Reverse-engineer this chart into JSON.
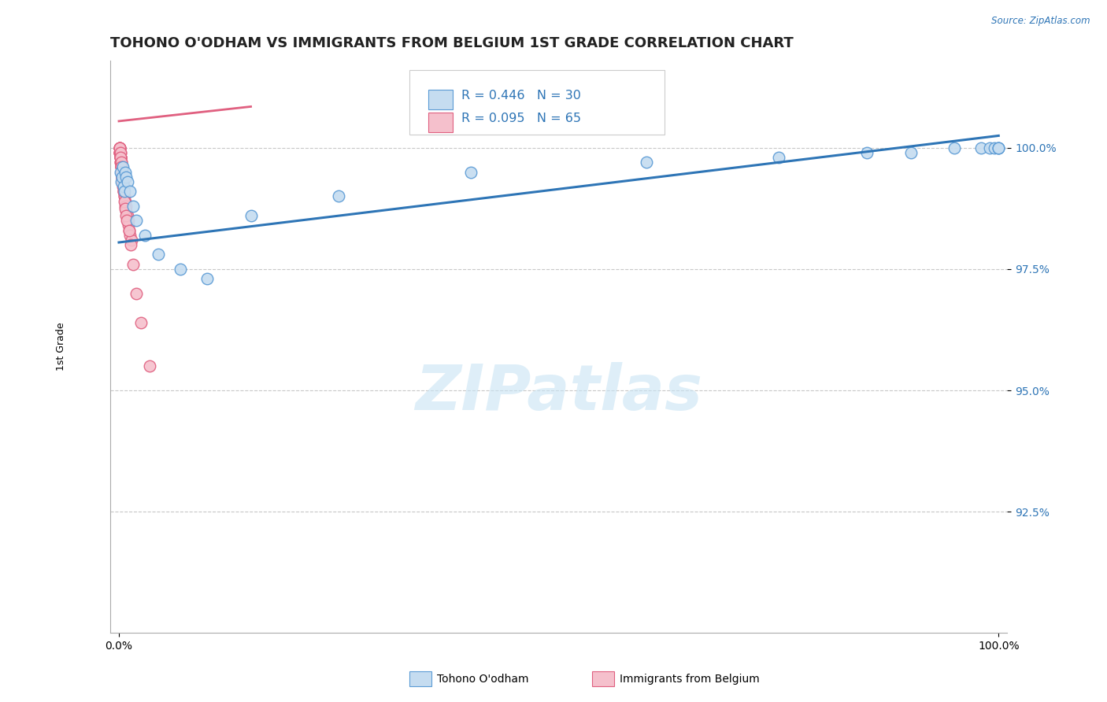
{
  "title": "TOHONO O'ODHAM VS IMMIGRANTS FROM BELGIUM 1ST GRADE CORRELATION CHART",
  "source_text": "Source: ZipAtlas.com",
  "ylabel": "1st Grade",
  "ylim": [
    90.0,
    101.8
  ],
  "yticks": [
    92.5,
    95.0,
    97.5,
    100.0
  ],
  "yticklabels": [
    "92.5%",
    "95.0%",
    "97.5%",
    "100.0%"
  ],
  "xticks": [
    0,
    100
  ],
  "xticklabels": [
    "0.0%",
    "100.0%"
  ],
  "grid_color": "#c8c8c8",
  "background_color": "#ffffff",
  "watermark": "ZIPatlas",
  "blue_series": {
    "label": "Tohono O'odham",
    "color": "#c5dcf0",
    "edge_color": "#5b9bd5",
    "R": 0.446,
    "N": 30,
    "x": [
      0.15,
      0.25,
      0.35,
      0.45,
      0.55,
      0.65,
      0.75,
      0.85,
      1.0,
      1.3,
      1.6,
      2.0,
      3.0,
      4.5,
      7.0,
      10.0,
      15.0,
      25.0,
      40.0,
      60.0,
      75.0,
      85.0,
      90.0,
      95.0,
      98.0,
      99.0,
      99.5,
      100.0,
      100.0,
      100.0
    ],
    "y": [
      99.5,
      99.3,
      99.4,
      99.6,
      99.2,
      99.1,
      99.5,
      99.4,
      99.3,
      99.1,
      98.8,
      98.5,
      98.2,
      97.8,
      97.5,
      97.3,
      98.6,
      99.0,
      99.5,
      99.7,
      99.8,
      99.9,
      99.9,
      100.0,
      100.0,
      100.0,
      100.0,
      100.0,
      100.0,
      100.0
    ]
  },
  "pink_series": {
    "label": "Immigrants from Belgium",
    "color": "#f5c0cc",
    "edge_color": "#e06080",
    "R": 0.095,
    "N": 65,
    "x": [
      0.05,
      0.07,
      0.08,
      0.09,
      0.1,
      0.11,
      0.12,
      0.13,
      0.15,
      0.16,
      0.18,
      0.19,
      0.2,
      0.21,
      0.22,
      0.23,
      0.25,
      0.26,
      0.28,
      0.3,
      0.32,
      0.33,
      0.35,
      0.37,
      0.4,
      0.42,
      0.45,
      0.48,
      0.5,
      0.55,
      0.58,
      0.6,
      0.65,
      0.7,
      0.75,
      0.8,
      0.85,
      0.9,
      0.95,
      1.0,
      1.05,
      1.1,
      1.2,
      1.3,
      1.4,
      0.06,
      0.14,
      0.17,
      0.24,
      0.27,
      0.31,
      0.34,
      0.38,
      0.44,
      0.52,
      0.62,
      0.68,
      0.78,
      0.88,
      1.15,
      1.35,
      1.6,
      2.0,
      2.5,
      3.5
    ],
    "y": [
      100.0,
      100.0,
      100.0,
      100.0,
      99.9,
      99.9,
      99.9,
      99.9,
      99.9,
      99.8,
      99.8,
      99.8,
      99.8,
      99.7,
      99.7,
      99.7,
      99.6,
      99.6,
      99.6,
      99.5,
      99.5,
      99.5,
      99.4,
      99.4,
      99.3,
      99.3,
      99.3,
      99.2,
      99.2,
      99.1,
      99.1,
      99.0,
      99.0,
      98.9,
      98.8,
      98.8,
      98.7,
      98.6,
      98.6,
      98.5,
      98.5,
      98.4,
      98.3,
      98.2,
      98.1,
      100.0,
      99.9,
      99.8,
      99.7,
      99.6,
      99.5,
      99.4,
      99.35,
      99.25,
      99.1,
      98.9,
      98.75,
      98.6,
      98.5,
      98.3,
      98.0,
      97.6,
      97.0,
      96.4,
      95.5
    ]
  },
  "blue_trendline": {
    "x_start": 0,
    "x_end": 100,
    "y_start": 98.05,
    "y_end": 100.25,
    "color": "#2e75b6",
    "linewidth": 2.2
  },
  "pink_trendline": {
    "x_start": 0,
    "x_end": 15,
    "y_start": 100.55,
    "y_end": 100.85,
    "color": "#e06080",
    "linewidth": 2.0
  },
  "legend_R_blue": "R = 0.446",
  "legend_N_blue": "N = 30",
  "legend_R_pink": "R = 0.095",
  "legend_N_pink": "N = 65",
  "legend_color_blue": "#c5dcf0",
  "legend_color_pink": "#f5c0cc",
  "legend_edge_blue": "#5b9bd5",
  "legend_edge_pink": "#e06080",
  "legend_text_color": "#2e75b6",
  "title_fontsize": 13,
  "axis_label_fontsize": 9,
  "tick_fontsize": 10,
  "marker_size": 110,
  "marker_linewidth": 1.0
}
